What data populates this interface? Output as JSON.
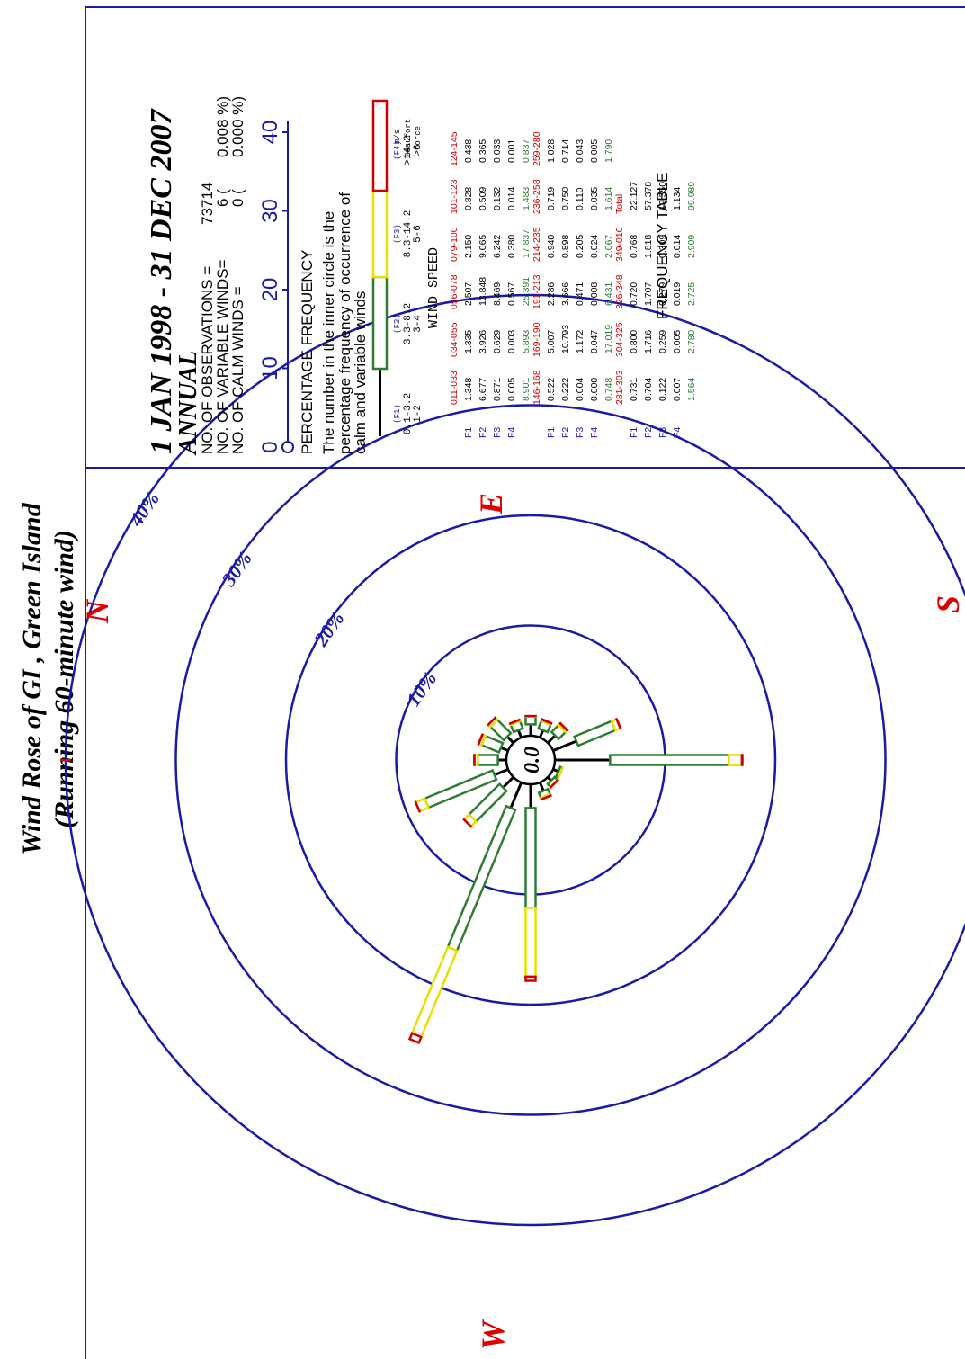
{
  "title_line1": "Wind Rose of GI , Green Island",
  "title_line2": "(Running 60-minute wind)",
  "compass": {
    "N": "N",
    "E": "E",
    "S": "S",
    "W": "W"
  },
  "center_value": "0.0",
  "info": {
    "date_range": "1 JAN 1998 - 31 DEC 2007",
    "period": "ANNUAL",
    "obs_label": "NO. OF OBSERVATIONS =",
    "obs_value": "73714",
    "var_label": "NO. OF VARIABLE WINDS=",
    "var_value": "6 (",
    "var_pct": "0.008 %)",
    "calm_label": "NO. OF CALM WINDS   =",
    "calm_value": "0 (",
    "calm_pct": "0.000 %)"
  },
  "legend": {
    "title": "PERCENTAGE  FREQUENCY",
    "note": [
      "The number in the inner circle is the",
      "percentage frequency of occurrence of",
      "calm and variable winds"
    ],
    "scale_ticks": [
      "0",
      "10",
      "20",
      "30",
      "40"
    ],
    "classes": [
      {
        "code": "(F1)",
        "ms": "0.1-3.2",
        "beaufort": "1-2"
      },
      {
        "code": "(F2)",
        "ms": "3.3-8.2",
        "beaufort": "3-4"
      },
      {
        "code": "(F3)",
        "ms": "8.3-14.2",
        "beaufort": "5-6"
      },
      {
        "code": "(F4)",
        "ms": ">14.2",
        "beaufort": ">6"
      }
    ],
    "unit_ms": "m/s",
    "unit_beaufort": "Beaufort",
    "unit_force": "force",
    "speed_label": "WIND  SPEED",
    "colors": {
      "F1": "#000000",
      "F2": "#2e7d32",
      "F3": "#e8e000",
      "F4": "#d00000"
    }
  },
  "table": {
    "caption": "FREQUENCY TABLE",
    "row_labels": [
      "F1",
      "F2",
      "F3",
      "F4"
    ],
    "blocks": [
      {
        "headers": [
          "011-033",
          "034-055",
          "056-078",
          "079-100",
          "101-123",
          "124-145"
        ],
        "rows": [
          [
            "1.348",
            "1.335",
            "2.507",
            "2.150",
            "0.828",
            "0.438"
          ],
          [
            "6.677",
            "3.926",
            "13.848",
            "9.065",
            "0.509",
            "0.365"
          ],
          [
            "0.871",
            "0.629",
            "8.469",
            "6.242",
            "0.132",
            "0.033"
          ],
          [
            "0.005",
            "0.003",
            "0.567",
            "0.380",
            "0.014",
            "0.001"
          ]
        ],
        "totals": [
          "8.901",
          "5.893",
          "25.391",
          "17.837",
          "1.483",
          "0.837"
        ]
      },
      {
        "headers": [
          "146-168",
          "169-190",
          "191-213",
          "214-235",
          "236-258",
          "259-280"
        ],
        "rows": [
          [
            "0.522",
            "5.007",
            "2.286",
            "0.940",
            "0.719",
            "1.028"
          ],
          [
            "0.222",
            "10.793",
            "3.666",
            "0.898",
            "0.750",
            "0.714"
          ],
          [
            "0.004",
            "1.172",
            "0.471",
            "0.205",
            "0.110",
            "0.043"
          ],
          [
            "0.000",
            "0.047",
            "0.008",
            "0.024",
            "0.035",
            "0.005"
          ]
        ],
        "totals": [
          "0.748",
          "17.019",
          "6.431",
          "2.067",
          "1.614",
          "1.790"
        ]
      },
      {
        "headers": [
          "281-303",
          "304-325",
          "326-348",
          "349-010",
          "Total"
        ],
        "rows": [
          [
            "0.731",
            "0.800",
            "0.720",
            "0.768",
            "22.127"
          ],
          [
            "0.704",
            "1.716",
            "1.707",
            "1.818",
            "57.378"
          ],
          [
            "0.122",
            "0.259",
            "0.279",
            "0.309",
            "19.350"
          ],
          [
            "0.007",
            "0.005",
            "0.019",
            "0.014",
            "1.134"
          ]
        ],
        "totals": [
          "1.564",
          "2.780",
          "2.725",
          "2.909",
          "99.989"
        ]
      }
    ]
  },
  "chart_data": {
    "type": "wind_rose",
    "title": "Wind Rose of GI , Green Island",
    "subtitle": "(Running 60-minute wind)",
    "ring_labels": [
      "10%",
      "20%",
      "30%",
      "40%"
    ],
    "rings": [
      10,
      20,
      30,
      40
    ],
    "inner_circle_value": 0.0,
    "sectors": [
      "011-033",
      "034-055",
      "056-078",
      "079-100",
      "101-123",
      "124-145",
      "146-168",
      "169-190",
      "191-213",
      "214-235",
      "236-258",
      "259-280",
      "281-303",
      "304-325",
      "326-348",
      "349-010"
    ],
    "directions_deg": [
      22.5,
      45,
      67.5,
      90,
      112.5,
      135,
      157.5,
      180,
      202.5,
      225,
      247.5,
      270,
      292.5,
      315,
      337.5,
      0
    ],
    "series": [
      {
        "name": "F1",
        "values": [
          1.348,
          1.335,
          2.507,
          2.15,
          0.828,
          0.438,
          0.522,
          5.007,
          2.286,
          0.94,
          0.719,
          1.028,
          0.731,
          0.8,
          0.72,
          0.768
        ]
      },
      {
        "name": "F2",
        "values": [
          6.677,
          3.926,
          13.848,
          9.065,
          0.509,
          0.365,
          0.222,
          10.793,
          3.666,
          0.898,
          0.75,
          0.714,
          0.704,
          1.716,
          1.707,
          1.818
        ]
      },
      {
        "name": "F3",
        "values": [
          0.871,
          0.629,
          8.469,
          6.242,
          0.132,
          0.033,
          0.004,
          1.172,
          0.471,
          0.205,
          0.11,
          0.043,
          0.122,
          0.259,
          0.279,
          0.309
        ]
      },
      {
        "name": "F4",
        "values": [
          0.005,
          0.003,
          0.567,
          0.38,
          0.014,
          0.001,
          0.0,
          0.047,
          0.008,
          0.024,
          0.035,
          0.005,
          0.007,
          0.005,
          0.019,
          0.014
        ]
      }
    ]
  }
}
